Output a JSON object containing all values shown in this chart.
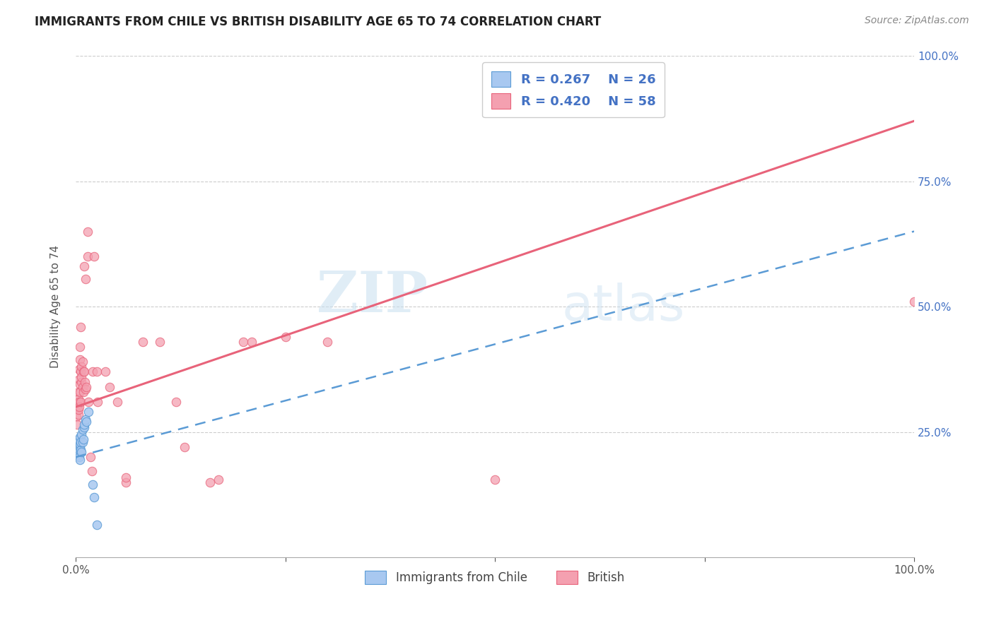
{
  "title": "IMMIGRANTS FROM CHILE VS BRITISH DISABILITY AGE 65 TO 74 CORRELATION CHART",
  "source": "Source: ZipAtlas.com",
  "ylabel": "Disability Age 65 to 74",
  "xlim": [
    0,
    1.0
  ],
  "ylim": [
    0,
    1.0
  ],
  "watermark_zip": "ZIP",
  "watermark_atlas": "atlas",
  "chile_color": "#a8c8f0",
  "british_color": "#f4a0b0",
  "chile_edge_color": "#5b9bd5",
  "british_edge_color": "#e8637a",
  "chile_line_color": "#5b9bd5",
  "british_line_color": "#e8637a",
  "legend_r1": "R = 0.267",
  "legend_n1": "N = 26",
  "legend_r2": "R = 0.420",
  "legend_n2": "N = 58",
  "british_line_x": [
    0.0,
    1.0
  ],
  "british_line_y": [
    0.3,
    0.87
  ],
  "chile_line_x": [
    0.0,
    1.0
  ],
  "chile_line_y": [
    0.2,
    0.65
  ],
  "chile_scatter": [
    [
      0.002,
      0.215
    ],
    [
      0.003,
      0.235
    ],
    [
      0.003,
      0.205
    ],
    [
      0.003,
      0.23
    ],
    [
      0.004,
      0.2
    ],
    [
      0.004,
      0.22
    ],
    [
      0.004,
      0.215
    ],
    [
      0.005,
      0.22
    ],
    [
      0.005,
      0.195
    ],
    [
      0.005,
      0.225
    ],
    [
      0.005,
      0.24
    ],
    [
      0.006,
      0.215
    ],
    [
      0.006,
      0.23
    ],
    [
      0.007,
      0.21
    ],
    [
      0.007,
      0.245
    ],
    [
      0.008,
      0.23
    ],
    [
      0.008,
      0.255
    ],
    [
      0.009,
      0.235
    ],
    [
      0.01,
      0.26
    ],
    [
      0.01,
      0.265
    ],
    [
      0.012,
      0.275
    ],
    [
      0.013,
      0.27
    ],
    [
      0.015,
      0.29
    ],
    [
      0.02,
      0.145
    ],
    [
      0.022,
      0.12
    ],
    [
      0.025,
      0.065
    ]
  ],
  "british_scatter": [
    [
      0.001,
      0.28
    ],
    [
      0.002,
      0.3
    ],
    [
      0.002,
      0.265
    ],
    [
      0.002,
      0.31
    ],
    [
      0.003,
      0.285
    ],
    [
      0.003,
      0.33
    ],
    [
      0.003,
      0.315
    ],
    [
      0.003,
      0.295
    ],
    [
      0.004,
      0.355
    ],
    [
      0.004,
      0.31
    ],
    [
      0.004,
      0.375
    ],
    [
      0.004,
      0.3
    ],
    [
      0.005,
      0.345
    ],
    [
      0.005,
      0.42
    ],
    [
      0.005,
      0.33
    ],
    [
      0.005,
      0.395
    ],
    [
      0.006,
      0.46
    ],
    [
      0.006,
      0.37
    ],
    [
      0.006,
      0.31
    ],
    [
      0.007,
      0.35
    ],
    [
      0.007,
      0.38
    ],
    [
      0.007,
      0.36
    ],
    [
      0.008,
      0.34
    ],
    [
      0.008,
      0.39
    ],
    [
      0.009,
      0.37
    ],
    [
      0.009,
      0.33
    ],
    [
      0.01,
      0.58
    ],
    [
      0.01,
      0.37
    ],
    [
      0.011,
      0.35
    ],
    [
      0.012,
      0.555
    ],
    [
      0.012,
      0.335
    ],
    [
      0.013,
      0.34
    ],
    [
      0.014,
      0.6
    ],
    [
      0.014,
      0.65
    ],
    [
      0.015,
      0.31
    ],
    [
      0.018,
      0.2
    ],
    [
      0.019,
      0.172
    ],
    [
      0.02,
      0.37
    ],
    [
      0.022,
      0.6
    ],
    [
      0.025,
      0.37
    ],
    [
      0.026,
      0.31
    ],
    [
      0.035,
      0.37
    ],
    [
      0.04,
      0.34
    ],
    [
      0.05,
      0.31
    ],
    [
      0.06,
      0.15
    ],
    [
      0.06,
      0.16
    ],
    [
      0.08,
      0.43
    ],
    [
      0.1,
      0.43
    ],
    [
      0.12,
      0.31
    ],
    [
      0.13,
      0.22
    ],
    [
      0.16,
      0.15
    ],
    [
      0.17,
      0.155
    ],
    [
      0.2,
      0.43
    ],
    [
      0.21,
      0.43
    ],
    [
      0.25,
      0.44
    ],
    [
      0.3,
      0.43
    ],
    [
      0.5,
      0.155
    ],
    [
      1.0,
      0.51
    ]
  ]
}
